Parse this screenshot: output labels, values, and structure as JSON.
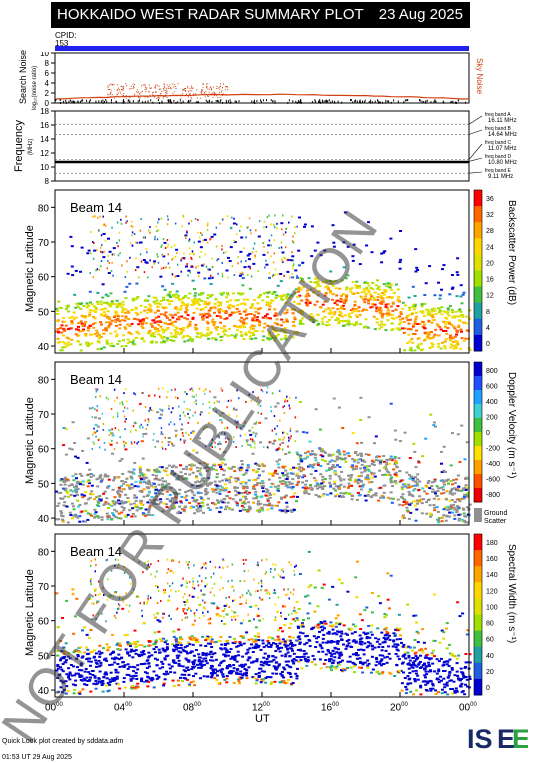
{
  "header": {
    "title": "HOKKAIDO WEST RADAR SUMMARY PLOT",
    "date": "23 Aug 2025",
    "cpid_label": "CPID:",
    "cpid_value": "153"
  },
  "noise_panel": {
    "ylabel": "Search Noise",
    "ylabel_sub": "log₁₀(noise ratio)",
    "sky_label": "Sky Noise",
    "ticks": [
      "10",
      "8",
      "6",
      "4",
      "2",
      "0"
    ]
  },
  "freq_panel": {
    "ylabel": "Frequency",
    "ylabel_sub": "(MHz)",
    "ticks": [
      "18",
      "16",
      "14",
      "12",
      "10",
      "8"
    ],
    "bands": [
      {
        "name": "freq band A",
        "freq": "16.11 MHz"
      },
      {
        "name": "freq band B",
        "freq": "14.64 MHz"
      },
      {
        "name": "freq band C",
        "freq": "11.07 MHz"
      },
      {
        "name": "freq band D",
        "freq": "10.80 MHz"
      },
      {
        "name": "freq band E",
        "freq": "9.11 MHz"
      }
    ]
  },
  "panels": [
    {
      "beam": "Beam 14",
      "ylabel": "Magnetic Latitude",
      "cbar_label": "Backscatter Power (dB)",
      "cbar_ticks": [
        "36",
        "32",
        "28",
        "24",
        "20",
        "16",
        "12",
        "8",
        "4",
        "0"
      ]
    },
    {
      "beam": "Beam 14",
      "ylabel": "Magnetic Latitude",
      "cbar_label": "Doppler Velocity (m s⁻¹)",
      "cbar_ticks": [
        "800",
        "600",
        "400",
        "200",
        "0",
        "-200",
        "-400",
        "-600",
        "-800"
      ],
      "ground_label": "Ground",
      "ground_label2": "Scatter"
    },
    {
      "beam": "Beam 14",
      "ylabel": "Magnetic Latitude",
      "cbar_label": "Spectral Width (m s⁻¹)",
      "cbar_ticks": [
        "180",
        "160",
        "140",
        "120",
        "100",
        "80",
        "60",
        "40",
        "20",
        "0"
      ]
    }
  ],
  "lat_ticks": [
    "80",
    "70",
    "60",
    "50",
    "40"
  ],
  "x_ticks": [
    "00",
    "04",
    "08",
    "12",
    "16",
    "20",
    "00"
  ],
  "x_tick_sup": "00",
  "xlabel": "UT",
  "watermark": "NOT FOR PUBLICATION",
  "footer": {
    "line1": "Quick Look plot created by sddata.adm",
    "line2": "01:53 UT 29 Aug 2025",
    "logo": "ISEE"
  },
  "colors": {
    "cpid_bar": "#2222ee",
    "sky_noise": "#d04010",
    "ground": "#909090"
  },
  "chart_data": [
    {
      "type": "line",
      "title": "Search Noise",
      "series": [
        {
          "name": "Sky Noise"
        }
      ],
      "ylim": [
        0,
        10
      ],
      "xlim": [
        0,
        24
      ]
    },
    {
      "type": "line",
      "title": "Frequency",
      "ylim": [
        8,
        18
      ],
      "xlim": [
        0,
        24
      ],
      "series": [
        {
          "name": "freq band D",
          "values": [
            10.8
          ]
        }
      ]
    },
    {
      "type": "heatmap",
      "xlabel": "UT",
      "ylabel": "Magnetic Latitude",
      "xlim": [
        0,
        24
      ],
      "ylim": [
        38,
        85
      ],
      "zlim": [
        0,
        36
      ],
      "zlabel": "Backscatter Power (dB)"
    },
    {
      "type": "heatmap",
      "xlabel": "UT",
      "ylabel": "Magnetic Latitude",
      "xlim": [
        0,
        24
      ],
      "ylim": [
        38,
        85
      ],
      "zlim": [
        -800,
        800
      ],
      "zlabel": "Doppler Velocity (m s⁻¹)"
    },
    {
      "type": "heatmap",
      "xlabel": "UT",
      "ylabel": "Magnetic Latitude",
      "xlim": [
        0,
        24
      ],
      "ylim": [
        38,
        85
      ],
      "zlim": [
        0,
        180
      ],
      "zlabel": "Spectral Width (m s⁻¹)"
    }
  ]
}
